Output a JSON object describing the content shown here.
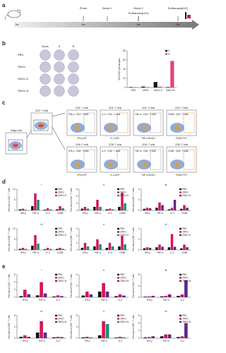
{
  "panels": {
    "a": {
      "label": "a",
      "events": [
        "Prime",
        "Boost 1",
        "Boost 2",
        "Euthanasia(1/2)",
        "Euthanasia(2/2)"
      ],
      "weeks": [
        "0w",
        "2w",
        "4w",
        "8w"
      ]
    },
    "b": {
      "label": "b",
      "columns": [
        "Mock",
        "S",
        "N"
      ],
      "rows": [
        "PBS",
        "ZWX1",
        "ZWX1-S",
        "ZWX1-N"
      ]
    },
    "c": {
      "label": "c",
      "gates": [
        "Single cells",
        "CD3⁺ T cells"
      ],
      "row_titles": [
        "CD4⁺ T cells",
        "CD8⁺ T cells"
      ],
      "x_labels": [
        "IFN-γ-PE",
        "IL-2-APC",
        "TNF-α-BV421",
        "CD69-FITC"
      ],
      "gate_labels": [
        [
          "IFN-γ⁺ CD4⁺ T cells",
          "IL-2⁺ CD4⁺ T cells",
          "TNF-α⁺ CD4⁺ T cells",
          "CD69⁺ CD4⁺ T cells"
        ],
        [
          "IFN-γ⁺ CD8⁺ T cells",
          "IL-2⁺ CD8⁺ T cells",
          "TNF-α⁺ CD8⁺ T cells",
          "CD69⁺ CD8⁺ T cells"
        ]
      ]
    },
    "d": {
      "label": "d"
    },
    "e": {
      "label": "e"
    }
  },
  "chart_data": [
    {
      "type": "bar",
      "y_label": "SFCs/10⁶ splenocytes",
      "categories": [
        "PBS",
        "ZWX1",
        "ZWX1-S",
        "ZWX1-N"
      ],
      "series": [
        {
          "name": "S",
          "color": "#111111",
          "values": [
            1,
            2,
            12,
            1
          ]
        },
        {
          "name": "N",
          "color": "#e0457b",
          "values": [
            1,
            1,
            2,
            58
          ]
        }
      ],
      "ylim": [
        0,
        80
      ],
      "yticks": [
        0,
        20,
        40,
        60,
        80
      ]
    },
    {
      "type": "bar",
      "title": "i",
      "y_label": "Percent of CD4⁺ T cells",
      "categories": [
        "IFN-γ",
        "TNF-α",
        "IL-2",
        "CD69"
      ],
      "series": [
        {
          "name": "PBS",
          "color": "#111111",
          "values": [
            0.5,
            2,
            0.3,
            0.5
          ]
        },
        {
          "name": "ZWX1",
          "color": "#d4145a",
          "values": [
            0.8,
            8,
            1,
            2
          ]
        },
        {
          "name": "ZWX1-S",
          "color": "#1a8a7a",
          "values": [
            0.3,
            5,
            0.5,
            1
          ]
        }
      ],
      "ylim": [
        0,
        10
      ],
      "yticks": [
        0,
        5,
        10
      ]
    },
    {
      "type": "bar",
      "title": "ii",
      "y_label": "Percent of CD4⁺ T cells",
      "categories": [
        "IFN-γ",
        "TNF-α",
        "IL-2",
        "CD69"
      ],
      "series": [
        {
          "name": "PBS",
          "color": "#111111",
          "values": [
            0.5,
            1,
            0.3,
            1
          ]
        },
        {
          "name": "ZWX1",
          "color": "#d4145a",
          "values": [
            1,
            3,
            0.5,
            5
          ]
        },
        {
          "name": "ZWX1-S",
          "color": "#1a8a7a",
          "values": [
            0.5,
            1,
            0.3,
            2
          ]
        }
      ],
      "ylim": [
        0,
        6
      ],
      "yticks": [
        0,
        2,
        4,
        6
      ]
    },
    {
      "type": "bar",
      "title": "iii",
      "y_label": "Percent of CD4⁺ T cells",
      "categories": [
        "IFN-γ",
        "TNF-α",
        "IL-2",
        "CD69"
      ],
      "series": [
        {
          "name": "PBS",
          "color": "#111111",
          "values": [
            0.3,
            0.5,
            0.2,
            0.3
          ]
        },
        {
          "name": "ZWX1",
          "color": "#d4145a",
          "values": [
            0.5,
            1.5,
            0.5,
            1
          ]
        },
        {
          "name": "ZWX1-S",
          "color": "#5b2a86",
          "values": [
            0.4,
            1,
            2,
            0.5
          ]
        }
      ],
      "ylim": [
        0,
        4
      ],
      "yticks": [
        0,
        2,
        4
      ]
    },
    {
      "type": "bar",
      "title": "iv",
      "y_label": "Percent of CD8⁺ T cells",
      "categories": [
        "IFN-γ",
        "TNF-α",
        "IL-2",
        "CD69"
      ],
      "series": [
        {
          "name": "PBS",
          "color": "#111111",
          "values": [
            0.5,
            2,
            0.3,
            0.5
          ]
        },
        {
          "name": "ZWX1",
          "color": "#d4145a",
          "values": [
            1,
            7,
            1,
            1
          ]
        },
        {
          "name": "ZWX1-S",
          "color": "#1a8a7a",
          "values": [
            0.5,
            3,
            0.5,
            0.5
          ]
        }
      ],
      "ylim": [
        0,
        10
      ],
      "yticks": [
        0,
        5,
        10
      ]
    },
    {
      "type": "bar",
      "title": "v",
      "y_label": "Percent of CD8⁺ T cells",
      "categories": [
        "IFN-γ",
        "TNF-α",
        "IL-2",
        "CD69"
      ],
      "series": [
        {
          "name": "PBS",
          "color": "#111111",
          "values": [
            0.3,
            0.5,
            0.3,
            0.5
          ]
        },
        {
          "name": "ZWX1",
          "color": "#d4145a",
          "values": [
            1,
            1.5,
            1,
            2
          ]
        },
        {
          "name": "ZWX1-S",
          "color": "#1a8a7a",
          "values": [
            0.5,
            0.8,
            0.5,
            0.8
          ]
        }
      ],
      "ylim": [
        0,
        3
      ],
      "yticks": [
        0,
        1,
        2,
        3
      ]
    },
    {
      "type": "bar",
      "title": "vi",
      "y_label": "Percent of CD8⁺ T cells",
      "categories": [
        "IFN-γ",
        "TNF-α",
        "IL-2",
        "CD69"
      ],
      "series": [
        {
          "name": "PBS",
          "color": "#111111",
          "values": [
            0.3,
            0.5,
            0.5,
            0.3
          ]
        },
        {
          "name": "ZWX1",
          "color": "#d4145a",
          "values": [
            0.5,
            1,
            3,
            1
          ]
        },
        {
          "name": "ZWX1-S",
          "color": "#5b2a86",
          "values": [
            0.4,
            0.6,
            0.6,
            0.5
          ]
        }
      ],
      "ylim": [
        0,
        4
      ],
      "yticks": [
        0,
        2,
        4
      ]
    },
    {
      "type": "bar",
      "title": "i",
      "y_label": "Percent of CD4⁺ T cells",
      "categories": [
        "IFN-γ",
        "TNF-α",
        "IL-2"
      ],
      "series": [
        {
          "name": "PBS",
          "color": "#111111",
          "values": [
            0.3,
            0.5,
            0.2
          ]
        },
        {
          "name": "ZWX1",
          "color": "#d4145a",
          "values": [
            2,
            4,
            0.5
          ]
        },
        {
          "name": "ZWX1-N",
          "color": "#5b2a86",
          "values": [
            0.8,
            1,
            0.3
          ]
        }
      ],
      "ylim": [
        0,
        6
      ],
      "yticks": [
        0,
        2,
        4,
        6
      ]
    },
    {
      "type": "bar",
      "title": "ii",
      "y_label": "Percent of CD4⁺ T cells",
      "categories": [
        "IFN-γ",
        "TNF-α",
        "IL-2"
      ],
      "series": [
        {
          "name": "PBS",
          "color": "#111111",
          "values": [
            0.3,
            1,
            0.2
          ]
        },
        {
          "name": "ZWX1",
          "color": "#d4145a",
          "values": [
            1,
            2.5,
            0.5
          ]
        },
        {
          "name": "ZWX1-N",
          "color": "#5b2a86",
          "values": [
            0.5,
            1,
            0.3
          ]
        }
      ],
      "ylim": [
        0,
        4
      ],
      "yticks": [
        0,
        2,
        4
      ]
    },
    {
      "type": "bar",
      "title": "iii",
      "y_label": "Percent of CD4⁺ T cells",
      "categories": [
        "IFN-γ",
        "TNF-α",
        "IL-2"
      ],
      "series": [
        {
          "name": "PBS",
          "color": "#111111",
          "values": [
            0.2,
            0.3,
            0.5
          ]
        },
        {
          "name": "ZWX1",
          "color": "#d4145a",
          "values": [
            0.3,
            0.5,
            1
          ]
        },
        {
          "name": "ZWX1-N",
          "color": "#5b2a86",
          "values": [
            0.5,
            1,
            6
          ]
        }
      ],
      "ylim": [
        0,
        8
      ],
      "yticks": [
        0,
        4,
        8
      ]
    },
    {
      "type": "bar",
      "title": "iv",
      "y_label": "Percent of CD8⁺ T cells",
      "categories": [
        "IFN-γ",
        "TNF-α",
        "IL-2"
      ],
      "series": [
        {
          "name": "PBS",
          "color": "#111111",
          "values": [
            0.5,
            2,
            0.3
          ]
        },
        {
          "name": "ZWX1",
          "color": "#d4145a",
          "values": [
            1,
            6,
            0.5
          ]
        },
        {
          "name": "ZWX1-N",
          "color": "#5b2a86",
          "values": [
            0.5,
            2,
            0.4
          ]
        }
      ],
      "ylim": [
        0,
        8
      ],
      "yticks": [
        0,
        4,
        8
      ]
    },
    {
      "type": "bar",
      "title": "v",
      "y_label": "Percent of CD8⁺ T cells",
      "categories": [
        "IFN-γ",
        "TNF-α",
        "IL-2"
      ],
      "series": [
        {
          "name": "PBS",
          "color": "#111111",
          "values": [
            0.3,
            1,
            0.2
          ]
        },
        {
          "name": "ZWX1",
          "color": "#d4145a",
          "values": [
            0.5,
            6,
            0.5
          ]
        },
        {
          "name": "ZWX1-N",
          "color": "#1a8a7a",
          "values": [
            0.3,
            5,
            0.3
          ]
        }
      ],
      "ylim": [
        0,
        8
      ],
      "yticks": [
        0,
        4,
        8
      ]
    },
    {
      "type": "bar",
      "title": "vi",
      "y_label": "Percent of CD8⁺ T cells",
      "categories": [
        "IFN-γ",
        "TNF-α",
        "IL-2"
      ],
      "series": [
        {
          "name": "PBS",
          "color": "#111111",
          "values": [
            0.2,
            0.5,
            0.3
          ]
        },
        {
          "name": "ZWX1",
          "color": "#d4145a",
          "values": [
            0.3,
            1,
            0.5
          ]
        },
        {
          "name": "ZWX1-N",
          "color": "#5b2a86",
          "values": [
            0.5,
            1,
            4
          ]
        }
      ],
      "ylim": [
        0,
        6
      ],
      "yticks": [
        0,
        2,
        4,
        6
      ]
    }
  ]
}
